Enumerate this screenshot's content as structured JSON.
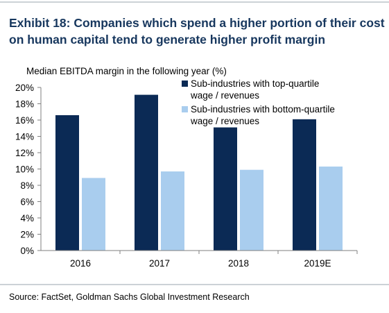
{
  "header": {
    "title_line1": "Exhibit 18: Companies which spend a higher portion of their cost",
    "title_line2": "on human capital tend to generate higher profit margin"
  },
  "footer": {
    "source": "Source: FactSet, Goldman Sachs Global Investment Research"
  },
  "colors": {
    "title": "#17375e",
    "series_dark": "#0b2a55",
    "series_light": "#a9cdee",
    "rule": "#9aa4ae",
    "axis": "#7f7f7f"
  },
  "chart_data": {
    "type": "bar",
    "title": "",
    "ylabel": "Median EBITDA margin in the following year (%)",
    "xlabel": "",
    "categories": [
      "2016",
      "2017",
      "2018",
      "2019E"
    ],
    "series": [
      {
        "name": "Sub-industries with top-quartile wage / revenues",
        "legend_lines": [
          "Sub-industries with top-quartile",
          "wage / revenues"
        ],
        "color": "#0b2a55",
        "values": [
          16.6,
          19.1,
          15.1,
          16.1
        ]
      },
      {
        "name": "Sub-industries with bottom-quartile wage / revenues",
        "legend_lines": [
          "Sub-industries with bottom-quartile",
          "wage / revenues"
        ],
        "color": "#a9cdee",
        "values": [
          8.9,
          9.7,
          9.9,
          10.3
        ]
      }
    ],
    "ylim": [
      0,
      20
    ],
    "yticks": [
      0,
      2,
      4,
      6,
      8,
      10,
      12,
      14,
      16,
      18,
      20
    ],
    "ytick_labels": [
      "0%",
      "2%",
      "4%",
      "6%",
      "8%",
      "10%",
      "12%",
      "14%",
      "16%",
      "18%",
      "20%"
    ],
    "grid": false,
    "legend_position": "top-right"
  }
}
